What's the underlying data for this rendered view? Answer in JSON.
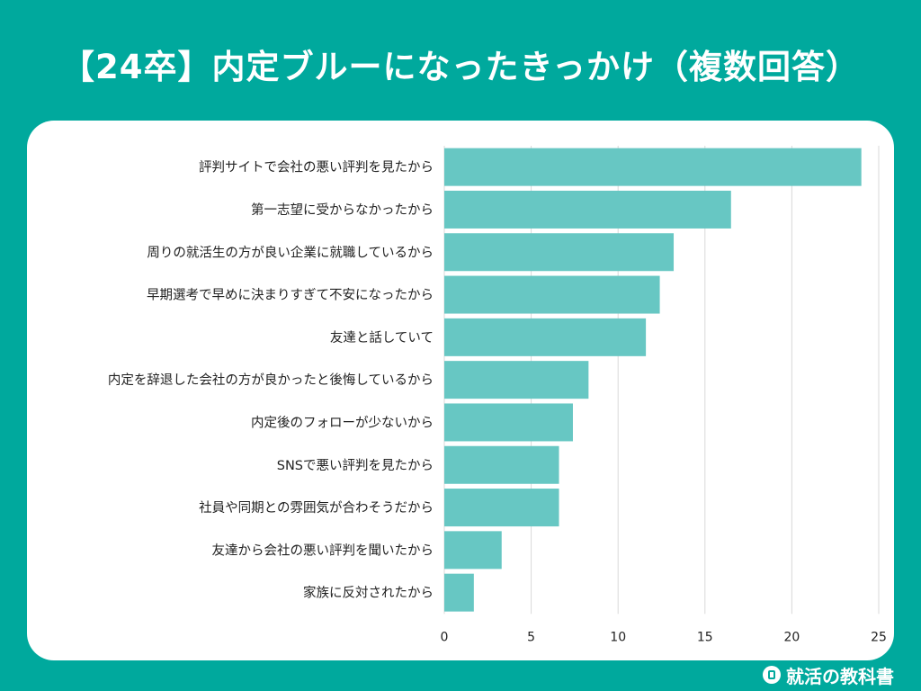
{
  "header": {
    "title": "【24卒】内定ブルーになったきっかけ（複数回答）"
  },
  "footer": {
    "brand": "就活の教科書"
  },
  "colors": {
    "background": "#00a99d",
    "bar": "#67c7c3",
    "grid": "#d9d9d9",
    "text": "#222222"
  },
  "chart_data": {
    "type": "bar",
    "orientation": "horizontal",
    "categories": [
      "評判サイトで会社の悪い評判を見たから",
      "第一志望に受からなかったから",
      "周りの就活生の方が良い企業に就職しているから",
      "早期選考で早めに決まりすぎて不安になったから",
      "友達と話していて",
      "内定を辞退した会社の方が良かったと後悔しているから",
      "内定後のフォローが少ないから",
      "SNSで悪い評判を見たから",
      "社員や同期との雰囲気が合わそうだから",
      "友達から会社の悪い評判を聞いたから",
      "家族に反対されたから"
    ],
    "values": [
      24,
      16.5,
      13.2,
      12.4,
      11.6,
      8.3,
      7.4,
      6.6,
      6.6,
      3.3,
      1.7
    ],
    "xlim": [
      0,
      25
    ],
    "xticks": [
      "0",
      "5",
      "10",
      "15",
      "20",
      "25"
    ],
    "xtick_values": [
      0,
      5,
      10,
      15,
      20,
      25
    ],
    "grid": true,
    "legend": "none"
  }
}
